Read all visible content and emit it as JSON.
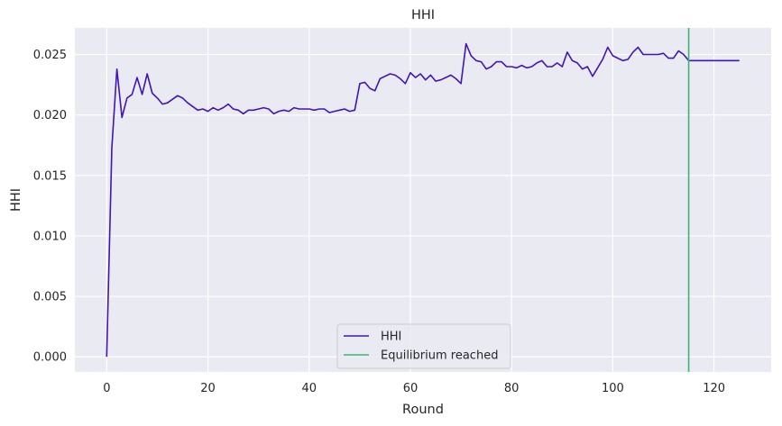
{
  "chart_data": {
    "type": "line",
    "title": "HHI",
    "xlabel": "Round",
    "ylabel": "HHI",
    "xlim": [
      -6.3,
      131.3
    ],
    "ylim": [
      -0.00125,
      0.0272
    ],
    "xticks": [
      0,
      20,
      40,
      60,
      80,
      100,
      120
    ],
    "xtick_labels": [
      "0",
      "20",
      "40",
      "60",
      "80",
      "100",
      "120"
    ],
    "yticks": [
      0.0,
      0.005,
      0.01,
      0.015,
      0.02,
      0.025
    ],
    "ytick_labels": [
      "0.000",
      "0.005",
      "0.010",
      "0.015",
      "0.020",
      "0.025"
    ],
    "grid": true,
    "legend_position": "lower center",
    "background": "#EAEAF2",
    "series": [
      {
        "name": "HHI",
        "color": "#4215B5",
        "x": [
          0,
          1,
          2,
          3,
          4,
          5,
          6,
          7,
          8,
          9,
          10,
          11,
          12,
          13,
          14,
          15,
          16,
          17,
          18,
          19,
          20,
          21,
          22,
          23,
          24,
          25,
          26,
          27,
          28,
          29,
          30,
          31,
          32,
          33,
          34,
          35,
          36,
          37,
          38,
          39,
          40,
          41,
          42,
          43,
          44,
          45,
          46,
          47,
          48,
          49,
          50,
          51,
          52,
          53,
          54,
          55,
          56,
          57,
          58,
          59,
          60,
          61,
          62,
          63,
          64,
          65,
          66,
          67,
          68,
          69,
          70,
          71,
          72,
          73,
          74,
          75,
          76,
          77,
          78,
          79,
          80,
          81,
          82,
          83,
          84,
          85,
          86,
          87,
          88,
          89,
          90,
          91,
          92,
          93,
          94,
          95,
          96,
          97,
          98,
          99,
          100,
          101,
          102,
          103,
          104,
          105,
          106,
          107,
          108,
          109,
          110,
          111,
          112,
          113,
          114,
          115,
          116,
          117,
          118,
          119,
          120,
          121,
          122,
          123,
          124,
          125
        ],
        "y": [
          0.0,
          0.0173,
          0.0238,
          0.0198,
          0.0214,
          0.0217,
          0.0231,
          0.0217,
          0.0234,
          0.0218,
          0.0214,
          0.0209,
          0.021,
          0.0213,
          0.0216,
          0.0214,
          0.021,
          0.0207,
          0.0204,
          0.0205,
          0.0203,
          0.0206,
          0.0204,
          0.0206,
          0.0209,
          0.0205,
          0.0204,
          0.0201,
          0.0204,
          0.0204,
          0.0205,
          0.0206,
          0.0205,
          0.0201,
          0.0203,
          0.0204,
          0.0203,
          0.0206,
          0.0205,
          0.0205,
          0.0205,
          0.0204,
          0.0205,
          0.0205,
          0.0202,
          0.0203,
          0.0204,
          0.0205,
          0.0203,
          0.0204,
          0.0226,
          0.0227,
          0.0222,
          0.022,
          0.023,
          0.0232,
          0.0234,
          0.0233,
          0.023,
          0.0226,
          0.0235,
          0.0231,
          0.0234,
          0.0229,
          0.0233,
          0.0228,
          0.0229,
          0.0231,
          0.0233,
          0.023,
          0.0226,
          0.0259,
          0.0249,
          0.0245,
          0.0244,
          0.0238,
          0.024,
          0.0244,
          0.0244,
          0.024,
          0.024,
          0.0239,
          0.0241,
          0.0239,
          0.024,
          0.0243,
          0.0245,
          0.024,
          0.024,
          0.0243,
          0.024,
          0.0252,
          0.0245,
          0.0243,
          0.0238,
          0.024,
          0.0232,
          0.0239,
          0.0246,
          0.0256,
          0.0249,
          0.0247,
          0.0245,
          0.0246,
          0.0252,
          0.0256,
          0.025,
          0.025,
          0.025,
          0.025,
          0.0251,
          0.0247,
          0.0247,
          0.0253,
          0.025,
          0.0245,
          0.0245,
          0.0245,
          0.0245,
          0.0245,
          0.0245,
          0.0245,
          0.0245,
          0.0245,
          0.0245,
          0.0245
        ]
      },
      {
        "name": "Equilibrium reached",
        "color": "#3CB371",
        "type": "vline",
        "x": 115
      }
    ]
  }
}
